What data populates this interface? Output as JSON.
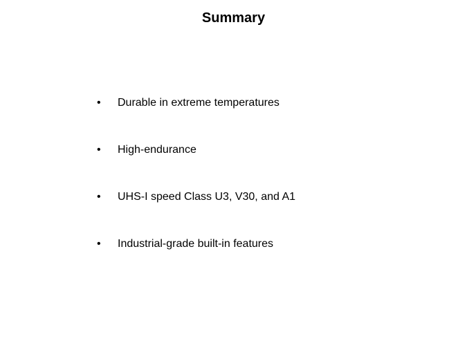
{
  "title": "Summary",
  "bullets": [
    "Durable in extreme temperatures",
    "High-endurance",
    "UHS-I speed Class U3, V30, and A1",
    "Industrial-grade built-in features"
  ],
  "style": {
    "background_color": "#ffffff",
    "text_color": "#000000",
    "title_fontsize": 20,
    "title_weight": "bold",
    "bullet_fontsize": 16,
    "bullet_spacing": 50
  }
}
